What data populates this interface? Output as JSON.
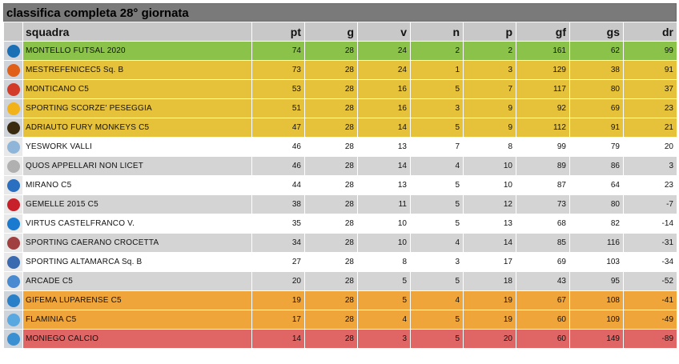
{
  "title": "classifica completa 28° giornata",
  "columns": {
    "team": "squadra",
    "pt": "pt",
    "g": "g",
    "v": "v",
    "n": "n",
    "p": "p",
    "gf": "gf",
    "gs": "gs",
    "dr": "dr"
  },
  "rows": [
    {
      "team": "MONTELLO FUTSAL 2020",
      "pt": "74",
      "g": "28",
      "v": "24",
      "n": "2",
      "p": "2",
      "gf": "161",
      "gs": "62",
      "dr": "99",
      "band": "first",
      "logo_color": "#1a6fb5",
      "logo_icon": "shield-icon"
    },
    {
      "team": "MESTREFENICEC5 Sq. B",
      "pt": "73",
      "g": "28",
      "v": "24",
      "n": "1",
      "p": "3",
      "gf": "129",
      "gs": "38",
      "dr": "91",
      "band": "yellow",
      "logo_color": "#e0601a",
      "logo_icon": "phoenix-icon"
    },
    {
      "team": "MONTICANO C5",
      "pt": "53",
      "g": "28",
      "v": "16",
      "n": "5",
      "p": "7",
      "gf": "117",
      "gs": "80",
      "dr": "37",
      "band": "yellow",
      "logo_color": "#d23a2a",
      "logo_icon": "crest-icon"
    },
    {
      "team": "SPORTING SCORZE' PESEGGIA",
      "pt": "51",
      "g": "28",
      "v": "16",
      "n": "3",
      "p": "9",
      "gf": "92",
      "gs": "69",
      "dr": "23",
      "band": "yellow",
      "logo_color": "#f2b21a",
      "logo_icon": "crest-icon"
    },
    {
      "team": "ADRIAUTO FURY MONKEYS C5",
      "pt": "47",
      "g": "28",
      "v": "14",
      "n": "5",
      "p": "9",
      "gf": "112",
      "gs": "91",
      "dr": "21",
      "band": "yellow",
      "logo_color": "#3a2a10",
      "logo_icon": "monkey-icon"
    },
    {
      "team": "YESWORK VALLI",
      "pt": "46",
      "g": "28",
      "v": "13",
      "n": "7",
      "p": "8",
      "gf": "99",
      "gs": "79",
      "dr": "20",
      "band": "white",
      "logo_color": "#8fb6d8",
      "logo_icon": "crest-icon"
    },
    {
      "team": "QUOS APPELLARI NON LICET",
      "pt": "46",
      "g": "28",
      "v": "14",
      "n": "4",
      "p": "10",
      "gf": "89",
      "gs": "86",
      "dr": "3",
      "band": "grey",
      "logo_color": "#b0b0b0",
      "logo_icon": "crest-icon"
    },
    {
      "team": "MIRANO C5",
      "pt": "44",
      "g": "28",
      "v": "13",
      "n": "5",
      "p": "10",
      "gf": "87",
      "gs": "64",
      "dr": "23",
      "band": "white",
      "logo_color": "#2a6fc0",
      "logo_icon": "crest-icon"
    },
    {
      "team": "GEMELLE 2015 C5",
      "pt": "38",
      "g": "28",
      "v": "11",
      "n": "5",
      "p": "12",
      "gf": "73",
      "gs": "80",
      "dr": "-7",
      "band": "grey",
      "logo_color": "#c8202a",
      "logo_icon": "crest-icon"
    },
    {
      "team": "VIRTUS CASTELFRANCO V.",
      "pt": "35",
      "g": "28",
      "v": "10",
      "n": "5",
      "p": "13",
      "gf": "68",
      "gs": "82",
      "dr": "-14",
      "band": "white",
      "logo_color": "#1a7ad0",
      "logo_icon": "v-letter-icon"
    },
    {
      "team": "SPORTING CAERANO CROCETTA",
      "pt": "34",
      "g": "28",
      "v": "10",
      "n": "4",
      "p": "14",
      "gf": "85",
      "gs": "116",
      "dr": "-31",
      "band": "grey",
      "logo_color": "#a04040",
      "logo_icon": "crest-icon"
    },
    {
      "team": "SPORTING ALTAMARCA Sq. B",
      "pt": "27",
      "g": "28",
      "v": "8",
      "n": "3",
      "p": "17",
      "gf": "69",
      "gs": "103",
      "dr": "-34",
      "band": "white",
      "logo_color": "#3a6ab0",
      "logo_icon": "shield-icon"
    },
    {
      "team": "ARCADE C5",
      "pt": "20",
      "g": "28",
      "v": "5",
      "n": "5",
      "p": "18",
      "gf": "43",
      "gs": "95",
      "dr": "-52",
      "band": "grey",
      "logo_color": "#4a8ad0",
      "logo_icon": "crest-icon"
    },
    {
      "team": "GIFEMA LUPARENSE C5",
      "pt": "19",
      "g": "28",
      "v": "5",
      "n": "4",
      "p": "19",
      "gf": "67",
      "gs": "108",
      "dr": "-41",
      "band": "orange",
      "logo_color": "#2a80c8",
      "logo_icon": "gl-letters-icon"
    },
    {
      "team": "FLAMINIA C5",
      "pt": "17",
      "g": "28",
      "v": "4",
      "n": "5",
      "p": "19",
      "gf": "60",
      "gs": "109",
      "dr": "-49",
      "band": "orange",
      "logo_color": "#5aa8e0",
      "logo_icon": "crest-icon"
    },
    {
      "team": "MONIEGO CALCIO",
      "pt": "14",
      "g": "28",
      "v": "3",
      "n": "5",
      "p": "20",
      "gf": "60",
      "gs": "149",
      "dr": "-89",
      "band": "red",
      "logo_color": "#3a90d0",
      "logo_icon": "shield-icon"
    }
  ]
}
